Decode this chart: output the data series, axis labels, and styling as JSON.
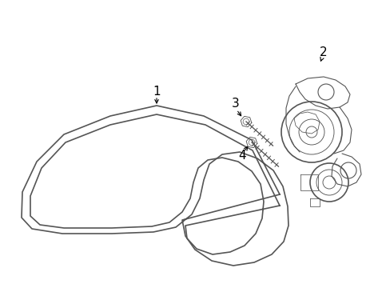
{
  "bg_color": "#ffffff",
  "line_color": "#555555",
  "label_color": "#000000",
  "lw_belt": 1.2,
  "lw_detail": 0.8,
  "fig_width": 4.89,
  "fig_height": 3.6,
  "dpi": 100
}
